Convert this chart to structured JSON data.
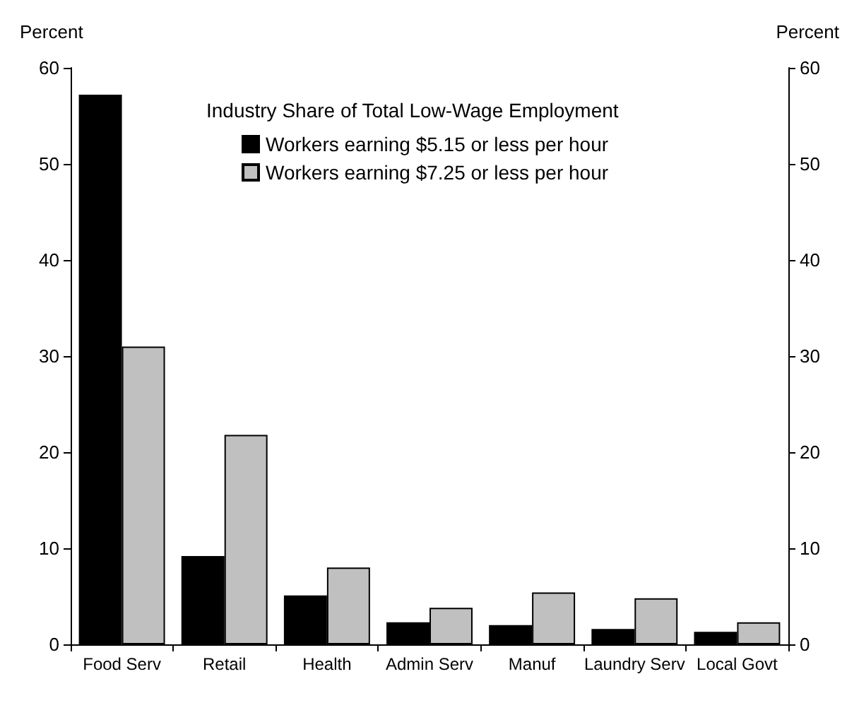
{
  "chart_data": {
    "type": "bar",
    "legend_title": "Industry Share of Total Low-Wage Employment",
    "ylabel": "Percent",
    "y2label": "Percent",
    "categories": [
      "Food Serv",
      "Retail",
      "Health",
      "Admin Serv",
      "Manuf",
      "Laundry Serv",
      "Local Govt"
    ],
    "series": [
      {
        "name": "Workers earning $5.15 or less per hour",
        "color": "#000000",
        "values": [
          57.2,
          9.2,
          5.1,
          2.3,
          2.0,
          1.6,
          1.3
        ]
      },
      {
        "name": "Workers earning $7.25 or less per hour",
        "color": "#c0c0c0",
        "values": [
          31.0,
          21.8,
          8.0,
          3.8,
          5.4,
          4.8,
          2.3
        ]
      }
    ],
    "ylim": [
      0,
      60
    ],
    "yticks": [
      0,
      10,
      20,
      30,
      40,
      50,
      60
    ],
    "y2lim": [
      0,
      60
    ],
    "y2ticks": [
      0,
      10,
      20,
      30,
      40,
      50,
      60
    ],
    "grid": false,
    "legend": "top right"
  }
}
